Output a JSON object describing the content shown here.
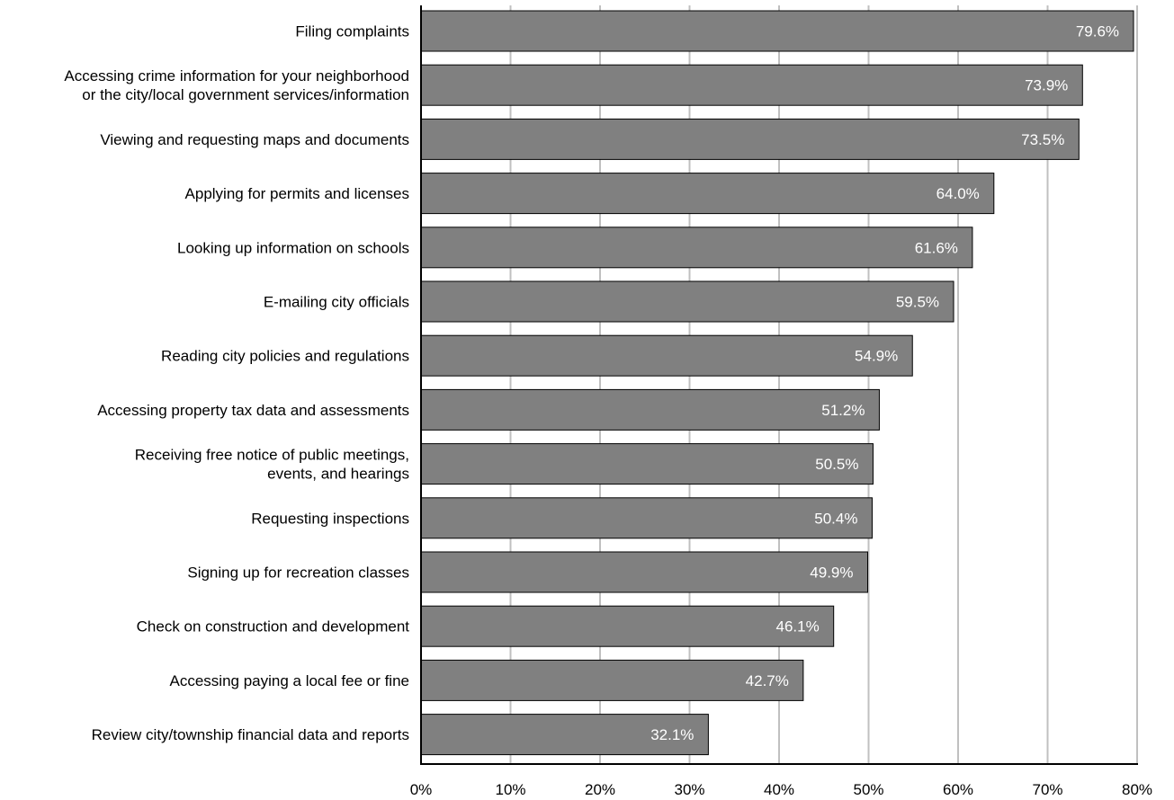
{
  "chart_data": {
    "type": "bar",
    "orientation": "horizontal",
    "categories": [
      "Filing complaints",
      "Accessing crime information for your neighborhood\nor the city/local government services/information",
      "Viewing and requesting maps and documents",
      "Applying for permits and licenses",
      "Looking up information on schools",
      "E-mailing city officials",
      "Reading city policies and regulations",
      "Accessing property tax data and assessments",
      "Receiving free notice of public meetings,\nevents, and hearings",
      "Requesting inspections",
      "Signing up for recreation classes",
      "Check on construction and development",
      "Accessing paying a local fee or fine",
      "Review city/township financial data and reports"
    ],
    "values": [
      79.6,
      73.9,
      73.5,
      64.0,
      61.6,
      59.5,
      54.9,
      51.2,
      50.5,
      50.4,
      49.9,
      46.1,
      42.7,
      32.1
    ],
    "value_labels": [
      "79.6%",
      "73.9%",
      "73.5%",
      "64.0%",
      "61.6%",
      "59.5%",
      "54.9%",
      "51.2%",
      "50.5%",
      "50.4%",
      "49.9%",
      "46.1%",
      "42.7%",
      "32.1%"
    ],
    "xlim": [
      0,
      80
    ],
    "x_ticks": [
      0,
      10,
      20,
      30,
      40,
      50,
      60,
      70,
      80
    ],
    "x_tick_labels": [
      "0%",
      "10%",
      "20%",
      "30%",
      "40%",
      "50%",
      "60%",
      "70%",
      "80%"
    ],
    "title": "",
    "xlabel": "",
    "ylabel": "",
    "grid": "vertical",
    "legend": "none",
    "colors": {
      "bar_fill": "#808080",
      "bar_stroke": "#000000",
      "gridline": "#c0c0c0",
      "axis": "#000000",
      "value_label": "#ffffff",
      "text": "#000000"
    }
  }
}
